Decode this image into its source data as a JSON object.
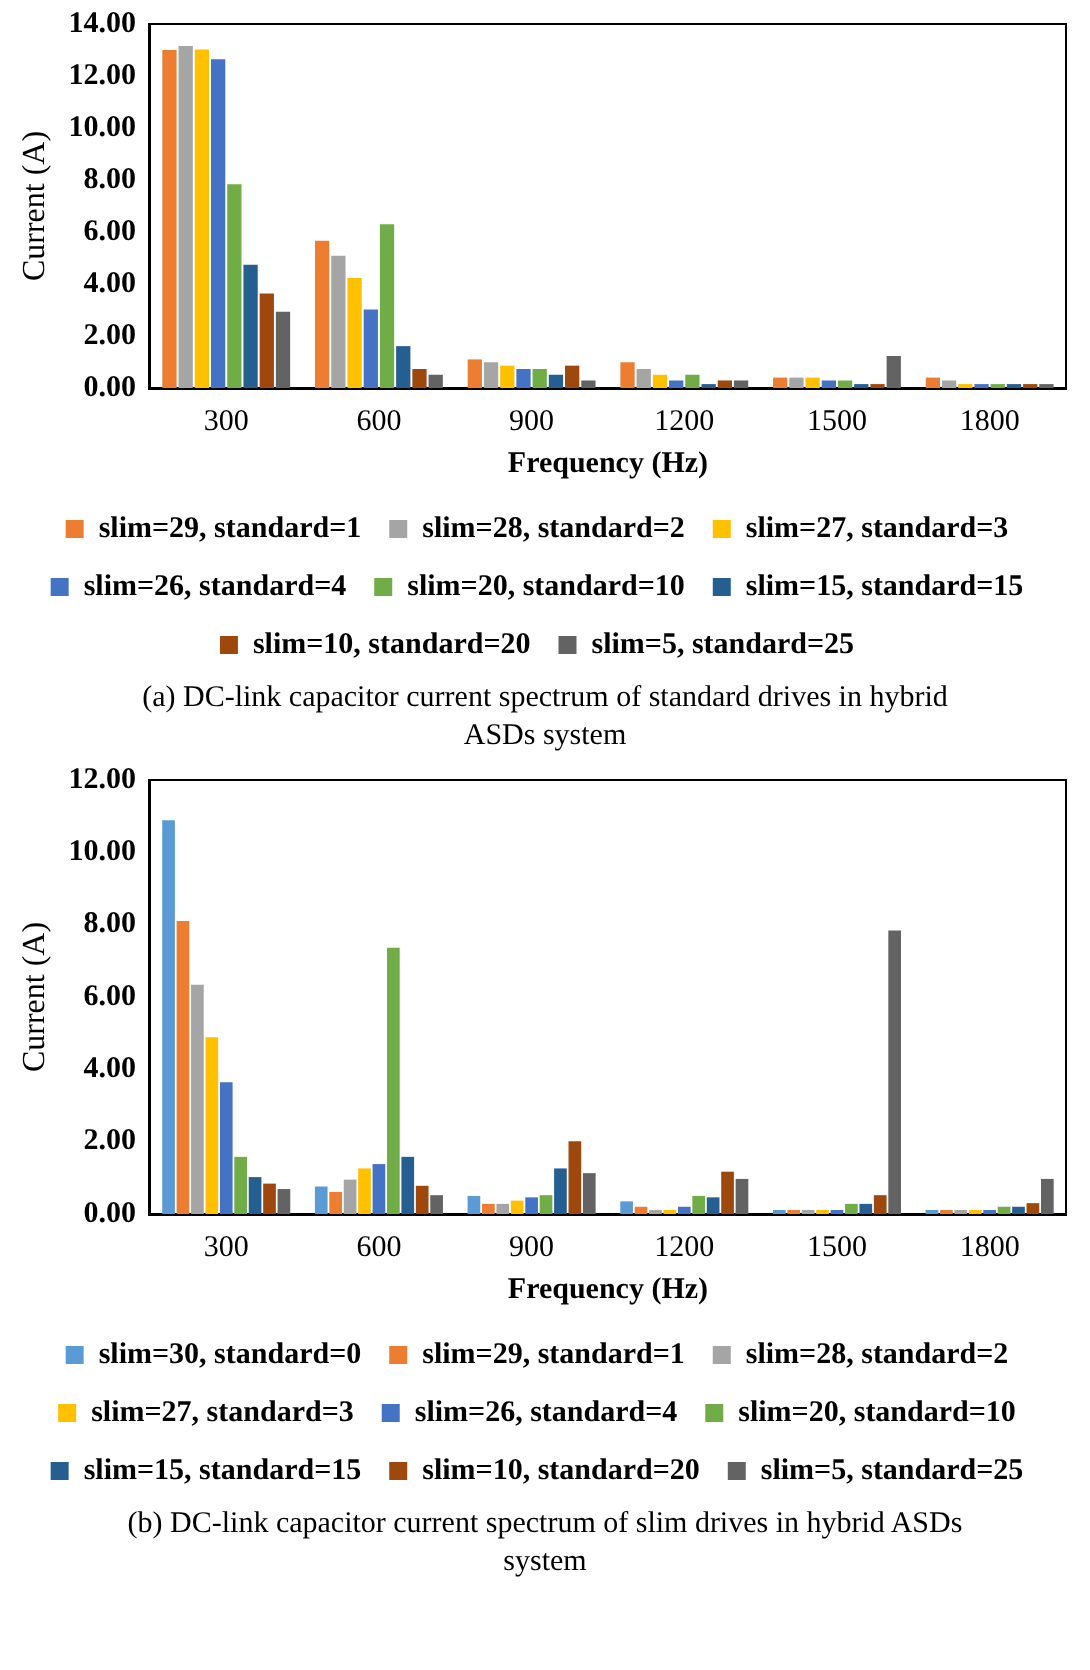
{
  "chart_data": [
    {
      "type": "bar",
      "title": "(a) DC-link capacitor current spectrum of standard drives in hybrid ASDs system",
      "xlabel": "Frequency (Hz)",
      "ylabel": "Current (A)",
      "categories": [
        "300",
        "600",
        "900",
        "1200",
        "1500",
        "1800"
      ],
      "series": [
        {
          "name": "slim=29, standard=1",
          "color": "#ed7d31",
          "values": [
            13.0,
            5.66,
            1.1,
            0.99,
            0.4,
            0.4
          ]
        },
        {
          "name": "slim=28, standard=2",
          "color": "#a5a5a5",
          "values": [
            13.15,
            5.09,
            0.99,
            0.73,
            0.4,
            0.29
          ]
        },
        {
          "name": "slim=27, standard=3",
          "color": "#ffc000",
          "values": [
            13.02,
            4.23,
            0.86,
            0.51,
            0.4,
            0.15
          ]
        },
        {
          "name": "slim=26, standard=4",
          "color": "#4472c4",
          "values": [
            12.64,
            3.02,
            0.73,
            0.29,
            0.29,
            0.15
          ]
        },
        {
          "name": "slim=20, standard=10",
          "color": "#70ad47",
          "values": [
            7.84,
            6.3,
            0.73,
            0.51,
            0.29,
            0.15
          ]
        },
        {
          "name": "slim=15, standard=15",
          "color": "#255e91",
          "values": [
            4.74,
            1.61,
            0.51,
            0.15,
            0.15,
            0.15
          ]
        },
        {
          "name": "slim=10, standard=20",
          "color": "#9e480e",
          "values": [
            3.63,
            0.73,
            0.86,
            0.29,
            0.15,
            0.15
          ]
        },
        {
          "name": "slim=5, standard=25",
          "color": "#636363",
          "values": [
            2.93,
            0.51,
            0.29,
            0.29,
            1.23,
            0.15
          ]
        }
      ],
      "ylim": [
        0,
        14
      ],
      "yticks": [
        {
          "value": 0,
          "label": "0.00"
        },
        {
          "value": 2,
          "label": "2.00"
        },
        {
          "value": 4,
          "label": "4.00"
        },
        {
          "value": 6,
          "label": "6.00"
        },
        {
          "value": 8,
          "label": "8.00"
        },
        {
          "value": 10,
          "label": "10.00"
        },
        {
          "value": 12,
          "label": "12.00"
        },
        {
          "value": 14,
          "label": "14.00"
        }
      ],
      "grid": false,
      "legend": "bottom"
    },
    {
      "type": "bar",
      "title": "(b) DC-link capacitor current spectrum of slim drives in hybrid ASDs system",
      "xlabel": "Frequency (Hz)",
      "ylabel": "Current (A)",
      "categories": [
        "300",
        "600",
        "900",
        "1200",
        "1500",
        "1800"
      ],
      "series": [
        {
          "name": "slim=30, standard=0",
          "color": "#5b9bd5",
          "values": [
            10.89,
            0.76,
            0.5,
            0.35,
            0.11,
            0.11
          ]
        },
        {
          "name": "slim=29, standard=1",
          "color": "#ed7d31",
          "values": [
            8.1,
            0.61,
            0.28,
            0.2,
            0.11,
            0.11
          ]
        },
        {
          "name": "slim=28, standard=2",
          "color": "#a5a5a5",
          "values": [
            6.34,
            0.95,
            0.28,
            0.11,
            0.11,
            0.11
          ]
        },
        {
          "name": "slim=27, standard=3",
          "color": "#ffc000",
          "values": [
            4.89,
            1.26,
            0.37,
            0.11,
            0.11,
            0.11
          ]
        },
        {
          "name": "slim=26, standard=4",
          "color": "#4472c4",
          "values": [
            3.64,
            1.38,
            0.46,
            0.2,
            0.11,
            0.11
          ]
        },
        {
          "name": "slim=20, standard=10",
          "color": "#70ad47",
          "values": [
            1.58,
            7.36,
            0.52,
            0.5,
            0.28,
            0.2
          ]
        },
        {
          "name": "slim=15, standard=15",
          "color": "#255e91",
          "values": [
            1.02,
            1.58,
            1.26,
            0.46,
            0.28,
            0.2
          ]
        },
        {
          "name": "slim=10, standard=20",
          "color": "#9e480e",
          "values": [
            0.84,
            0.78,
            2.01,
            1.17,
            0.52,
            0.3
          ]
        },
        {
          "name": "slim=5, standard=25",
          "color": "#636363",
          "values": [
            0.69,
            0.52,
            1.13,
            0.97,
            7.84,
            0.97
          ]
        }
      ],
      "ylim": [
        0,
        12
      ],
      "yticks": [
        {
          "value": 0,
          "label": "0.00"
        },
        {
          "value": 2,
          "label": "2.00"
        },
        {
          "value": 4,
          "label": "4.00"
        },
        {
          "value": 6,
          "label": "6.00"
        },
        {
          "value": 8,
          "label": "8.00"
        },
        {
          "value": 10,
          "label": "10.00"
        },
        {
          "value": 12,
          "label": "12.00"
        }
      ],
      "grid": false,
      "legend": "bottom"
    }
  ]
}
